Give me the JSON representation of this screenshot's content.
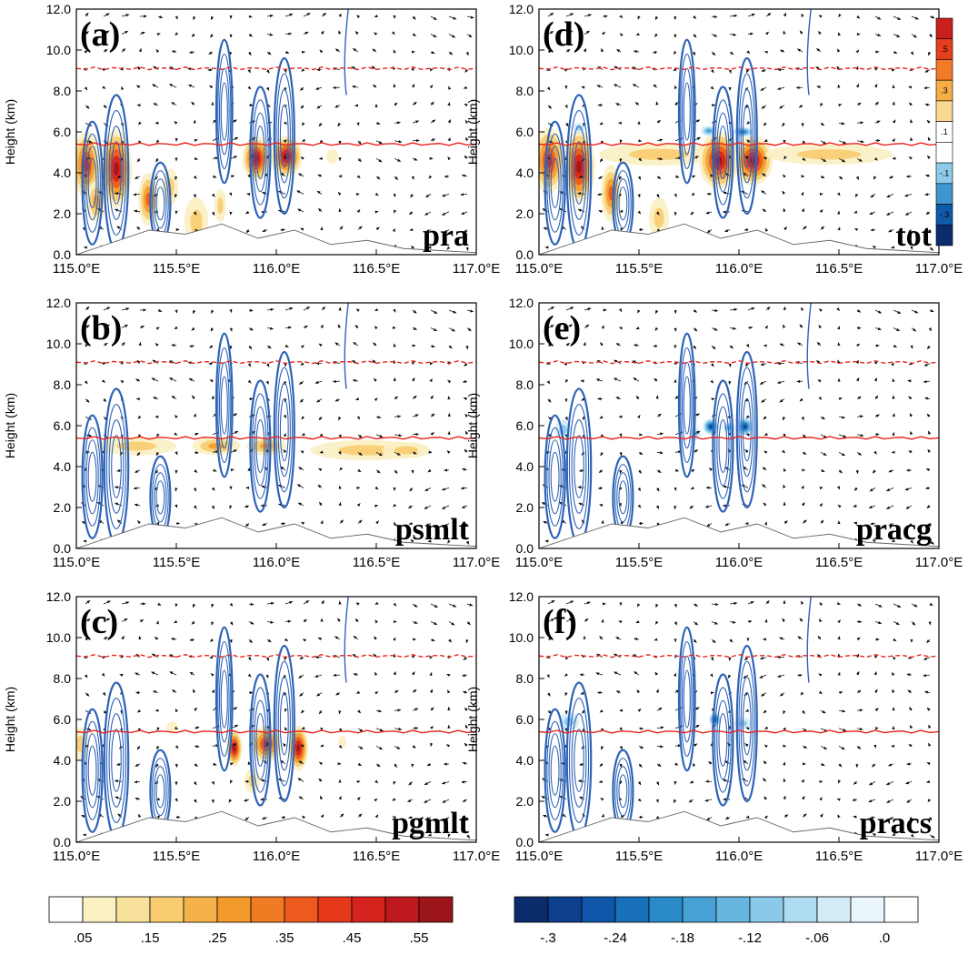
{
  "chart_data": {
    "type": "cross-section",
    "panels": [
      {
        "id": "a",
        "label": "(a)",
        "name": "pra",
        "xlabel_ticks": [
          "115.0°E",
          "115.5°E",
          "116.0°E",
          "116.5°E",
          "117.0°E"
        ]
      },
      {
        "id": "b",
        "label": "(b)",
        "name": "psmlt",
        "xlabel_ticks": [
          "115.0°E",
          "115.5°E",
          "116.0°E",
          "116.5°E",
          "117.0°E"
        ]
      },
      {
        "id": "c",
        "label": "(c)",
        "name": "pgmlt",
        "xlabel_ticks": [
          "115.0°E",
          "115.5°E",
          "116.0°E",
          "116.5°E",
          "117.0°E"
        ]
      },
      {
        "id": "d",
        "label": "(d)",
        "name": "tot",
        "xlabel_ticks": [
          "115.0°E",
          "115.5°E",
          "116.0°E",
          "116.5°E",
          "117.0°E"
        ]
      },
      {
        "id": "e",
        "label": "(e)",
        "name": "pracg",
        "xlabel_ticks": [
          "115.0°E",
          "115.5°E",
          "116.0°E",
          "116.5°E",
          "117.0°E"
        ]
      },
      {
        "id": "f",
        "label": "(f)",
        "name": "pracs",
        "xlabel_ticks": [
          "115.0°E",
          "115.5°E",
          "116.0°E",
          "116.5°E",
          "117.0°E"
        ]
      }
    ],
    "x_range": [
      115.0,
      117.0
    ],
    "y_range": [
      0.0,
      12.0
    ],
    "ylabel": "Height (km)",
    "y_ticks": [
      "0.0",
      "2.0",
      "4.0",
      "6.0",
      "8.0",
      "10.0",
      "12.0"
    ],
    "reference_lines": [
      {
        "style": "solid",
        "color": "#e8221c",
        "height_km": 5.4
      },
      {
        "style": "dashed",
        "color": "#e8221c",
        "height_km": 9.1
      }
    ],
    "positive_colorbar": {
      "labels": [
        ".05",
        ".15",
        ".25",
        ".35",
        ".45",
        ".55"
      ],
      "colors": [
        "#ffffff",
        "#fbf0c2",
        "#f8e19a",
        "#f8cc6f",
        "#f6b24a",
        "#f39a2c",
        "#f07b22",
        "#ec5a1d",
        "#e6391b",
        "#d6231d",
        "#bc181d",
        "#9b1519"
      ]
    },
    "negative_colorbar": {
      "labels": [
        "-.3",
        "-.24",
        "-.18",
        "-.12",
        "-.06",
        ".0"
      ],
      "colors": [
        "#0b2c6b",
        "#0d3f8f",
        "#0f55a8",
        "#1870bb",
        "#2b8ac8",
        "#47a1d5",
        "#66b6e0",
        "#8ac9e9",
        "#b0dcf1",
        "#d3ecf8",
        "#ebf6fc",
        "#ffffff"
      ]
    },
    "panel_d_colorbar": {
      "labels": [
        ".5",
        ".3",
        ".1",
        "-.1",
        "-.3"
      ],
      "colors": [
        "#c8201c",
        "#e63f1e",
        "#f37a27",
        "#f7ad45",
        "#fbd892",
        "#ffffff",
        "#ffffff",
        "#8ecbeb",
        "#3f95cf",
        "#0f5aa8",
        "#0b2c6b"
      ]
    }
  }
}
